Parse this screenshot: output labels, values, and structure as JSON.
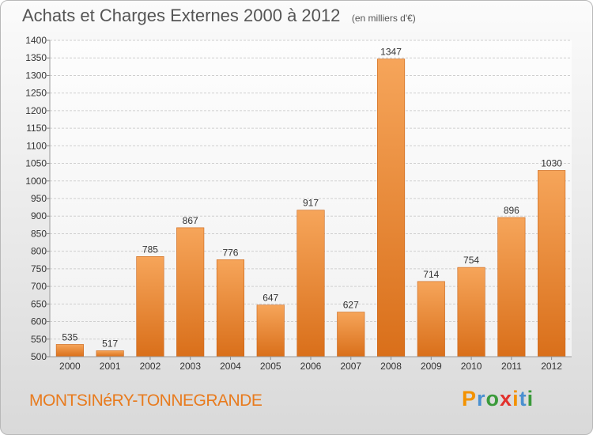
{
  "header": {
    "title": "Achats et Charges Externes 2000 à 2012",
    "unit": "(en milliers d'€)"
  },
  "footer": {
    "commune": "MONTSINéRY-TONNEGRANDE",
    "logo_letters": [
      "P",
      "r",
      "o",
      "x",
      "i",
      "t",
      "i"
    ],
    "logo_colors": [
      "#f39200",
      "#4a90d0",
      "#3a9a3a",
      "#e2312d",
      "#f39200",
      "#4a90d0",
      "#3a9a3a"
    ]
  },
  "chart_data": {
    "type": "bar",
    "title": "Achats et Charges Externes 2000 à 2012",
    "subtitle": "(en milliers d'€)",
    "categories": [
      "2000",
      "2001",
      "2002",
      "2003",
      "2004",
      "2005",
      "2006",
      "2007",
      "2008",
      "2009",
      "2010",
      "2011",
      "2012"
    ],
    "values": [
      535,
      517,
      785,
      867,
      776,
      647,
      917,
      627,
      1347,
      714,
      754,
      896,
      1030
    ],
    "ylim": [
      500,
      1400
    ],
    "yticks": [
      500,
      550,
      600,
      650,
      700,
      750,
      800,
      850,
      900,
      950,
      1000,
      1050,
      1100,
      1150,
      1200,
      1250,
      1300,
      1350,
      1400
    ],
    "grid": true,
    "bar_color": "#e8822a"
  }
}
